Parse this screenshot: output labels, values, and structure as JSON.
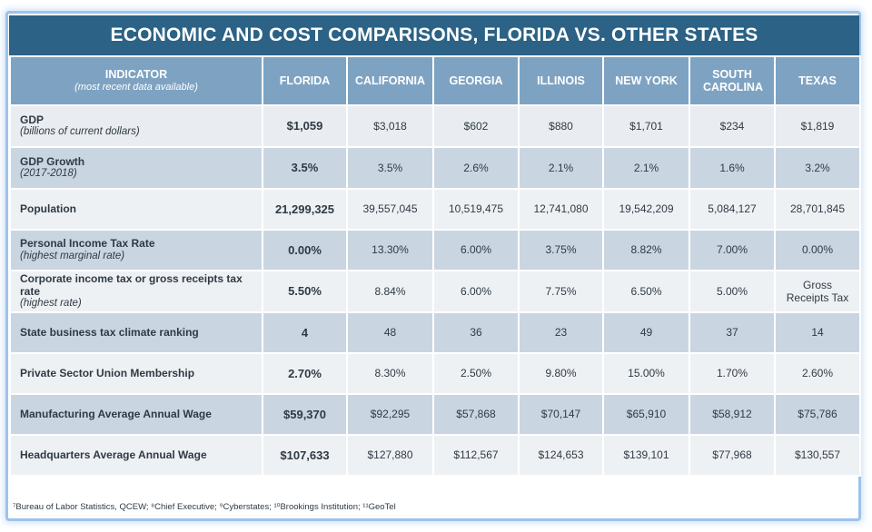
{
  "title": "ECONOMIC AND COST COMPARISONS, FLORIDA VS. OTHER STATES",
  "header": {
    "indicator": "INDICATOR",
    "indicator_sub": "(most recent data available)",
    "states": [
      "FLORIDA",
      "CALIFORNIA",
      "GEORGIA",
      "ILLINOIS",
      "NEW YORK",
      "SOUTH CAROLINA",
      "TEXAS"
    ]
  },
  "rows": [
    {
      "label": "GDP",
      "sub": "(billions of current dollars)",
      "values": [
        "$1,059",
        "$3,018",
        "$602",
        "$880",
        "$1,701",
        "$234",
        "$1,819"
      ]
    },
    {
      "label": "GDP Growth",
      "sub": "(2017-2018)",
      "values": [
        "3.5%",
        "3.5%",
        "2.6%",
        "2.1%",
        "2.1%",
        "1.6%",
        "3.2%"
      ]
    },
    {
      "label": "Population",
      "sub": "",
      "values": [
        "21,299,325",
        "39,557,045",
        "10,519,475",
        "12,741,080",
        "19,542,209",
        "5,084,127",
        "28,701,845"
      ]
    },
    {
      "label": "Personal Income Tax Rate",
      "sub": "(highest marginal rate)",
      "values": [
        "0.00%",
        "13.30%",
        "6.00%",
        "3.75%",
        "8.82%",
        "7.00%",
        "0.00%"
      ]
    },
    {
      "label": "Corporate income tax or gross receipts tax rate",
      "sub": "(highest rate)",
      "values": [
        "5.50%",
        "8.84%",
        "6.00%",
        "7.75%",
        "6.50%",
        "5.00%",
        "Gross Receipts Tax"
      ]
    },
    {
      "label": "State business tax climate ranking",
      "sub": "",
      "values": [
        "4",
        "48",
        "36",
        "23",
        "49",
        "37",
        "14"
      ]
    },
    {
      "label": "Private Sector Union Membership",
      "sub": "",
      "values": [
        "2.70%",
        "8.30%",
        "2.50%",
        "9.80%",
        "15.00%",
        "1.70%",
        "2.60%"
      ]
    },
    {
      "label": "Manufacturing Average Annual Wage",
      "sub": "",
      "values": [
        "$59,370",
        "$92,295",
        "$57,868",
        "$70,147",
        "$65,910",
        "$58,912",
        "$75,786"
      ]
    },
    {
      "label": "Headquarters Average Annual Wage",
      "sub": "",
      "values": [
        "$107,633",
        "$127,880",
        "$112,567",
        "$124,653",
        "$139,101",
        "$77,968",
        "$130,557"
      ]
    }
  ],
  "footnote": "⁷Bureau of Labor Statistics, QCEW; ⁸Chief Executive; ⁹Cyberstates; ¹⁰Brookings Institution; ¹¹GeoTel",
  "colors": {
    "title_bg": "#2b6285",
    "header_bg": "#7ea3c2",
    "row_light": "#e9ecf0",
    "row_dark": "#c9d6e2",
    "frame_border": "#9dc3ea"
  }
}
